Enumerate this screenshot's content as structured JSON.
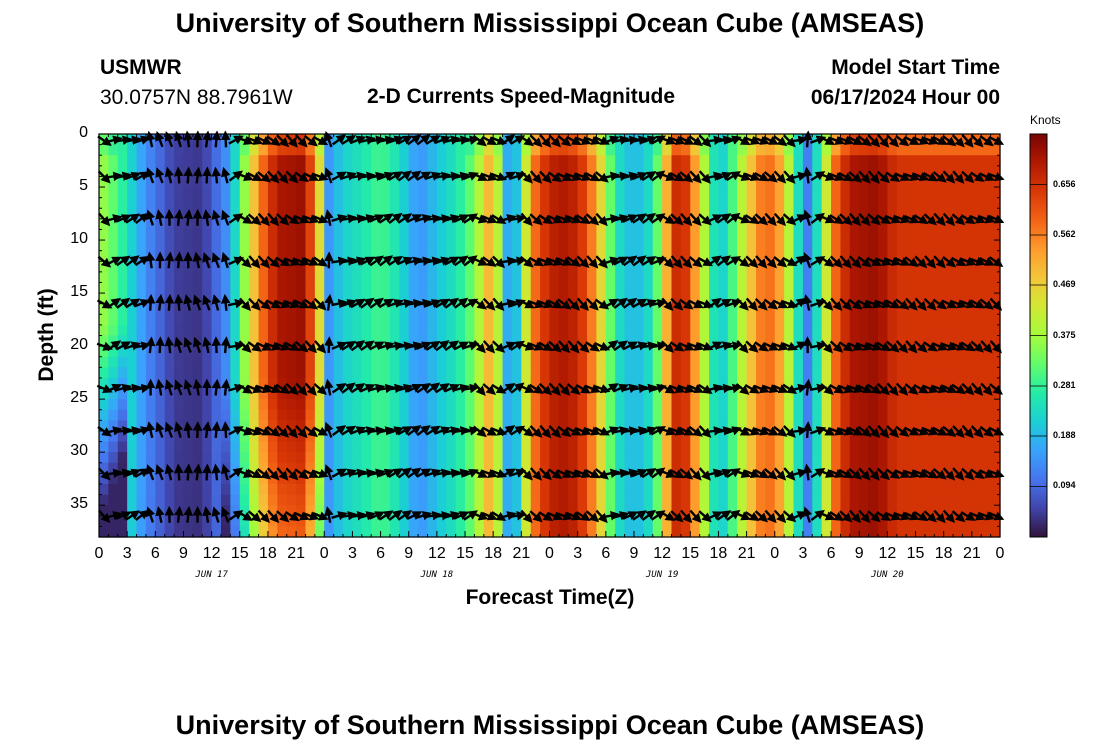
{
  "header": {
    "title": "University of Southern Mississippi Ocean Cube (AMSEAS)",
    "station": "USMWR",
    "coords": "30.0757N  88.7961W",
    "subtitle": "2-D Currents Speed-Magnitude",
    "model_label": "Model Start Time",
    "model_time": "06/17/2024 Hour 00"
  },
  "footer": {
    "title": "University of Southern Mississippi Ocean Cube (AMSEAS)"
  },
  "chart_data": {
    "type": "heatmap",
    "title": "2-D Currents Speed-Magnitude",
    "xlabel": "Forecast Time(Z)",
    "ylabel": "Depth (ft)",
    "x_tick_labels": [
      "0",
      "3",
      "6",
      "9",
      "12",
      "15",
      "18",
      "21",
      "0",
      "3",
      "6",
      "9",
      "12",
      "15",
      "18",
      "21",
      "0",
      "3",
      "6",
      "9",
      "12",
      "15",
      "18",
      "21",
      "0",
      "3",
      "6",
      "9",
      "12",
      "15",
      "18",
      "21",
      "0"
    ],
    "day_labels": [
      "JUN 17",
      "JUN 18",
      "JUN 19",
      "JUN 20"
    ],
    "x_range_hours": [
      0,
      96
    ],
    "y_ticks": [
      "0",
      "5",
      "10",
      "15",
      "20",
      "25",
      "30",
      "35"
    ],
    "y_range_ft": [
      0,
      38
    ],
    "colorbar": {
      "label": "Knots",
      "ticks": [
        "0.656",
        "0.562",
        "0.469",
        "0.375",
        "0.281",
        "0.188",
        "0.094"
      ],
      "range": [
        0.0,
        0.75
      ],
      "colors": [
        "#30123b",
        "#4145ab",
        "#4675ed",
        "#39a2fc",
        "#1bcfd4",
        "#24eca6",
        "#61fc6c",
        "#a4fc3b",
        "#d1e834",
        "#f3c63a",
        "#fe9b2d",
        "#f36315",
        "#d93806",
        "#b11901",
        "#7a0402"
      ]
    },
    "surface_speed_by_hour": [
      [
        0,
        0.38
      ],
      [
        2,
        0.3
      ],
      [
        5,
        0.14
      ],
      [
        8,
        0.05
      ],
      [
        11,
        0.04
      ],
      [
        14,
        0.16
      ],
      [
        15,
        0.3
      ],
      [
        17,
        0.55
      ],
      [
        19,
        0.7
      ],
      [
        22,
        0.72
      ],
      [
        23.5,
        0.45
      ],
      [
        24.5,
        0.15
      ],
      [
        26,
        0.22
      ],
      [
        28,
        0.25
      ],
      [
        30,
        0.3
      ],
      [
        32,
        0.24
      ],
      [
        34,
        0.14
      ],
      [
        36,
        0.2
      ],
      [
        38,
        0.25
      ],
      [
        40,
        0.34
      ],
      [
        42,
        0.55
      ],
      [
        43,
        0.25
      ],
      [
        44,
        0.1
      ],
      [
        45,
        0.3
      ],
      [
        46,
        0.55
      ],
      [
        48,
        0.68
      ],
      [
        50,
        0.7
      ],
      [
        52,
        0.62
      ],
      [
        54,
        0.4
      ],
      [
        55,
        0.25
      ],
      [
        57,
        0.18
      ],
      [
        59,
        0.25
      ],
      [
        60,
        0.4
      ],
      [
        61,
        0.62
      ],
      [
        62,
        0.7
      ],
      [
        64,
        0.48
      ],
      [
        65,
        0.3
      ],
      [
        66,
        0.2
      ],
      [
        67,
        0.25
      ],
      [
        69,
        0.45
      ],
      [
        71,
        0.6
      ],
      [
        73,
        0.5
      ],
      [
        74,
        0.3
      ],
      [
        75.5,
        0.12
      ],
      [
        77,
        0.3
      ],
      [
        78,
        0.55
      ],
      [
        80,
        0.7
      ],
      [
        83,
        0.72
      ],
      [
        85,
        0.65
      ],
      [
        96,
        0.65
      ]
    ],
    "vectors_note": "current direction arrows at every forecast hour and ~4 ft depth intervals"
  }
}
